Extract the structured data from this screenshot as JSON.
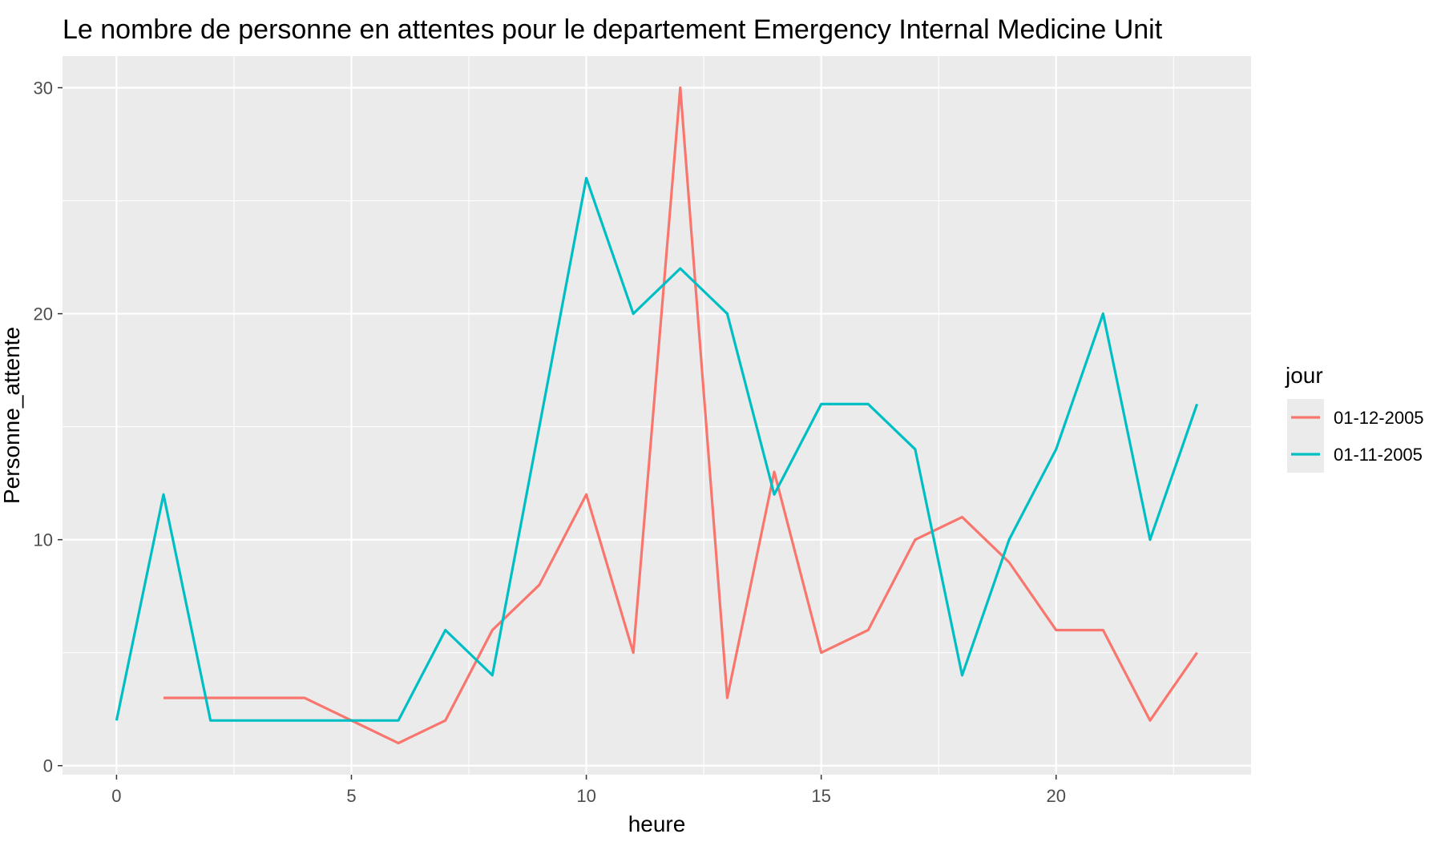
{
  "chart_data": {
    "type": "line",
    "title": "Le nombre de personne en attentes pour le departement Emergency Internal Medicine Unit",
    "xlabel": "heure",
    "ylabel": "Personne_attente",
    "xlim": [
      -1.15,
      24.15
    ],
    "ylim": [
      -0.4,
      31.4
    ],
    "x_ticks": [
      0,
      5,
      10,
      15,
      20
    ],
    "x_tick_labels": [
      "0",
      "5",
      "10",
      "15",
      "20"
    ],
    "y_ticks": [
      0,
      10,
      20,
      30
    ],
    "y_tick_labels": [
      "0",
      "10",
      "20",
      "30"
    ],
    "grid": true,
    "legend": {
      "title": "jour",
      "position": "right"
    },
    "series": [
      {
        "name": "01-12-2005",
        "color": "#F8766D",
        "x": [
          1,
          2,
          3,
          4,
          5,
          6,
          7,
          8,
          9,
          10,
          11,
          12,
          13,
          14,
          15,
          16,
          17,
          18,
          19,
          20,
          21,
          22,
          23
        ],
        "values": [
          3,
          3,
          3,
          3,
          2,
          1,
          2,
          6,
          8,
          12,
          5,
          30,
          3,
          13,
          5,
          6,
          10,
          11,
          9,
          6,
          6,
          2,
          5
        ]
      },
      {
        "name": "01-11-2005",
        "color": "#00BFC4",
        "x": [
          0,
          1,
          2,
          3,
          4,
          5,
          6,
          7,
          8,
          9,
          10,
          11,
          12,
          13,
          14,
          15,
          16,
          17,
          18,
          19,
          20,
          21,
          22,
          23
        ],
        "values": [
          2,
          12,
          2,
          2,
          2,
          2,
          2,
          6,
          4,
          15,
          26,
          20,
          22,
          20,
          12,
          16,
          16,
          14,
          4,
          10,
          14,
          20,
          10,
          16
        ]
      }
    ]
  }
}
